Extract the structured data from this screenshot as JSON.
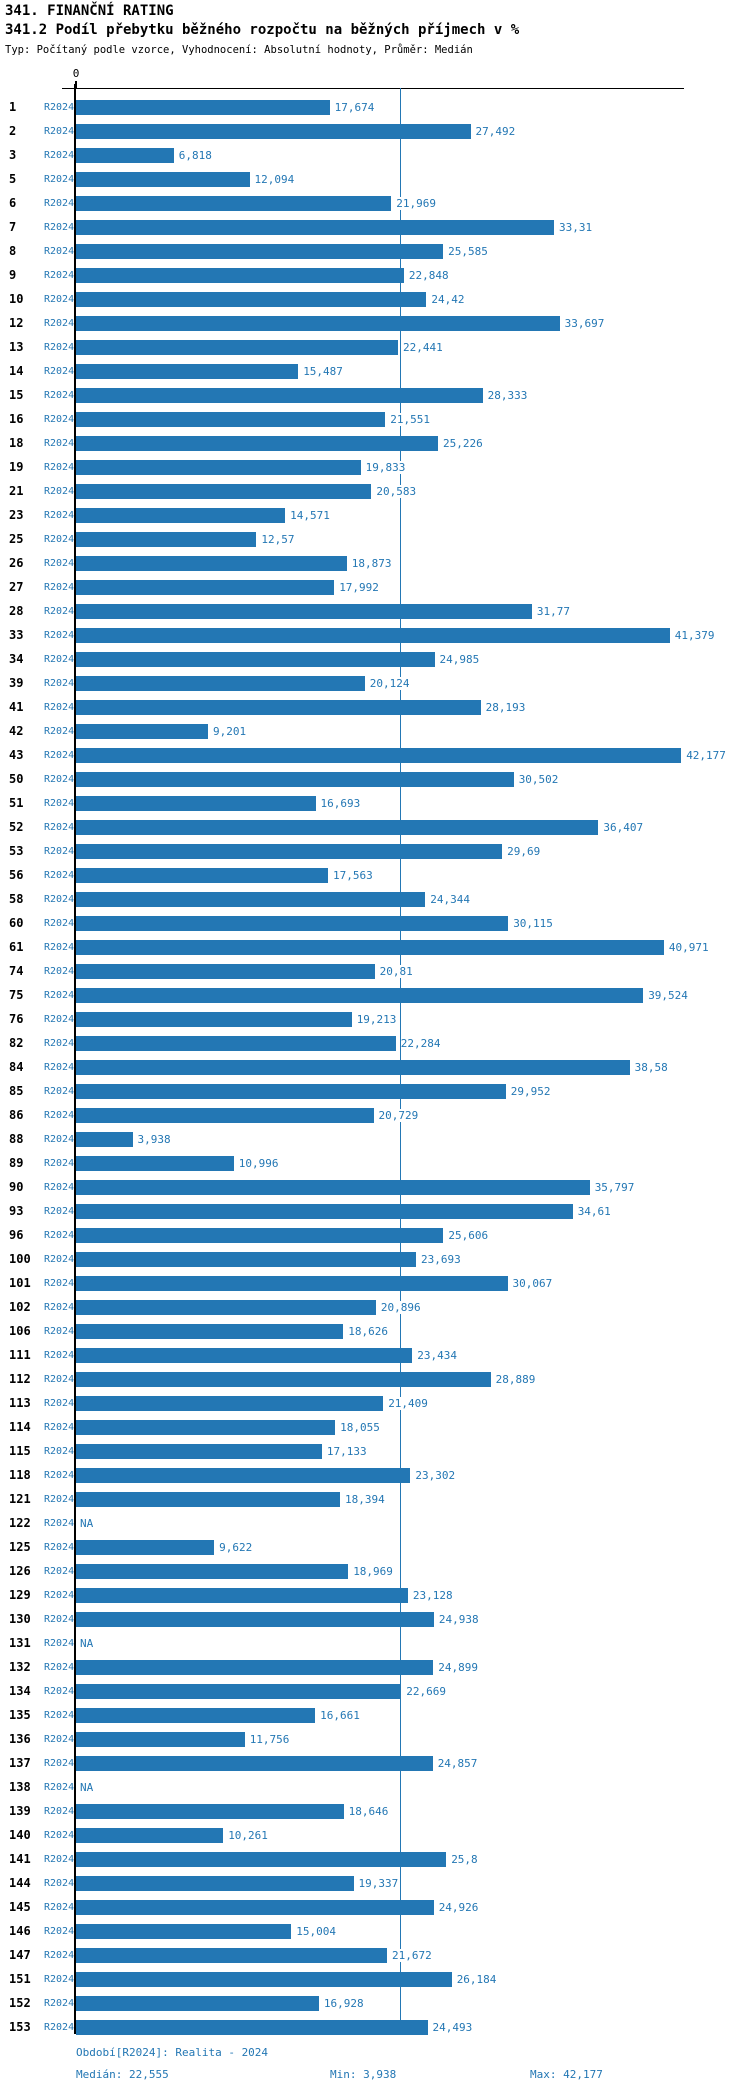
{
  "header": {
    "title": "341. FINANČNÍ RATING",
    "subtitle": "341.2 Podíl přebytku běžného rozpočtu na běžných příjmech v %",
    "meta": "Typ: Počítaný podle vzorce, Vyhodnocení: Absolutní hodnoty, Průměr: Medián"
  },
  "chart_data": {
    "type": "bar",
    "orientation": "horizontal",
    "title": "341.2 Podíl přebytku běžného rozpočtu na běžných příjmech v %",
    "xlabel": "",
    "ylabel": "",
    "xlim": [
      0,
      42.4
    ],
    "grid": false,
    "axis_zero_label": "0",
    "series_label": "R2024",
    "median_value": 22.555,
    "min_value": 3.938,
    "max_value": 42.177,
    "bar_color": "#2377b4",
    "na_text": "NA",
    "categories": [
      "1",
      "2",
      "3",
      "5",
      "6",
      "7",
      "8",
      "9",
      "10",
      "12",
      "13",
      "14",
      "15",
      "16",
      "18",
      "19",
      "21",
      "23",
      "25",
      "26",
      "27",
      "28",
      "33",
      "34",
      "39",
      "41",
      "42",
      "43",
      "50",
      "51",
      "52",
      "53",
      "56",
      "58",
      "60",
      "61",
      "74",
      "75",
      "76",
      "82",
      "84",
      "85",
      "86",
      "88",
      "89",
      "90",
      "93",
      "96",
      "100",
      "101",
      "102",
      "106",
      "111",
      "112",
      "113",
      "114",
      "115",
      "118",
      "121",
      "122",
      "125",
      "126",
      "129",
      "130",
      "131",
      "132",
      "134",
      "135",
      "136",
      "137",
      "138",
      "139",
      "140",
      "141",
      "144",
      "145",
      "146",
      "147",
      "151",
      "152",
      "153"
    ],
    "values": [
      17.674,
      27.492,
      6.818,
      12.094,
      21.969,
      33.31,
      25.585,
      22.848,
      24.42,
      33.697,
      22.441,
      15.487,
      28.333,
      21.551,
      25.226,
      19.833,
      20.583,
      14.571,
      12.57,
      18.873,
      17.992,
      31.77,
      41.379,
      24.985,
      20.124,
      28.193,
      9.201,
      42.177,
      30.502,
      16.693,
      36.407,
      29.69,
      17.563,
      24.344,
      30.115,
      40.971,
      20.81,
      39.524,
      19.213,
      22.284,
      38.58,
      29.952,
      20.729,
      3.938,
      10.996,
      35.797,
      34.61,
      25.606,
      23.693,
      30.067,
      20.896,
      18.626,
      23.434,
      28.889,
      21.409,
      18.055,
      17.133,
      23.302,
      18.394,
      null,
      9.622,
      18.969,
      23.128,
      24.938,
      null,
      24.899,
      22.669,
      16.661,
      11.756,
      24.857,
      null,
      18.646,
      10.261,
      25.8,
      19.337,
      24.926,
      15.004,
      21.672,
      26.184,
      16.928,
      24.493
    ],
    "value_labels": [
      "17,674",
      "27,492",
      "6,818",
      "12,094",
      "21,969",
      "33,31",
      "25,585",
      "22,848",
      "24,42",
      "33,697",
      "22,441",
      "15,487",
      "28,333",
      "21,551",
      "25,226",
      "19,833",
      "20,583",
      "14,571",
      "12,57",
      "18,873",
      "17,992",
      "31,77",
      "41,379",
      "24,985",
      "20,124",
      "28,193",
      "9,201",
      "42,177",
      "30,502",
      "16,693",
      "36,407",
      "29,69",
      "17,563",
      "24,344",
      "30,115",
      "40,971",
      "20,81",
      "39,524",
      "19,213",
      "22,284",
      "38,58",
      "29,952",
      "20,729",
      "3,938",
      "10,996",
      "35,797",
      "34,61",
      "25,606",
      "23,693",
      "30,067",
      "20,896",
      "18,626",
      "23,434",
      "28,889",
      "21,409",
      "18,055",
      "17,133",
      "23,302",
      "18,394",
      "NA",
      "9,622",
      "18,969",
      "23,128",
      "24,938",
      "NA",
      "24,899",
      "22,669",
      "16,661",
      "11,756",
      "24,857",
      "NA",
      "18,646",
      "10,261",
      "25,8",
      "19,337",
      "24,926",
      "15,004",
      "21,672",
      "26,184",
      "16,928",
      "24,493"
    ]
  },
  "footer": {
    "period": "Období[R2024]: Realita - 2024",
    "median": "Medián: 22,555",
    "min": "Min: 3,938",
    "max": "Max: 42,177"
  }
}
